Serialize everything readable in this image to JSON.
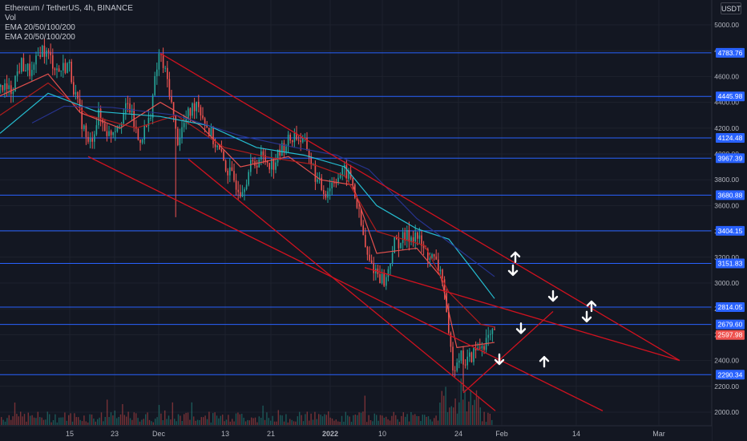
{
  "legend": {
    "symbol": "Ethereum / TetherUS, 4h, BINANCE",
    "vol": "Vol",
    "ema1": "EMA 20/50/100/200",
    "ema2": "EMA 20/50/100/200"
  },
  "currency": "USDT",
  "colors": {
    "background": "#131722",
    "grid": "#1e222d",
    "bull": "#26a69a",
    "bear": "#ef5350",
    "hline": "#2962ff",
    "channel": "#d1121f",
    "ema20": "#ef5350",
    "ema50": "#b71c1c",
    "ema100": "#26c6da",
    "ema200": "#283593",
    "price_tag": "#2962ff",
    "last_tag": "#ef5350",
    "arrow": "#ffffff"
  },
  "chart_data": {
    "type": "candlestick",
    "symbol": "ETHUSDT",
    "timeframe": "4h",
    "exchange": "BINANCE",
    "x_tick_labels": [
      "15",
      "23",
      "Dec",
      "13",
      "21",
      "2022",
      "10",
      "24",
      "Feb",
      "14",
      "Mar"
    ],
    "y_tick_labels": [
      2000,
      2200,
      2400,
      2600,
      2800,
      3000,
      3200,
      3400,
      3600,
      3800,
      4000,
      4200,
      4400,
      4600,
      4800,
      5000
    ],
    "ylim": [
      1910,
      5070
    ],
    "horizontal_levels": [
      4783.76,
      4445.98,
      4124.48,
      3967.39,
      3680.88,
      3404.15,
      3151.83,
      2814.05,
      2679.6,
      2290.34
    ],
    "last_price": 2597.98,
    "price_path": [
      [
        0,
        4520
      ],
      [
        12,
        4480
      ],
      [
        25,
        4700
      ],
      [
        40,
        4620
      ],
      [
        50,
        4820
      ],
      [
        60,
        4760
      ],
      [
        72,
        4640
      ],
      [
        85,
        4700
      ],
      [
        95,
        4400
      ],
      [
        110,
        4050
      ],
      [
        122,
        4300
      ],
      [
        135,
        4150
      ],
      [
        148,
        4260
      ],
      [
        160,
        4380
      ],
      [
        172,
        4100
      ],
      [
        185,
        4250
      ],
      [
        198,
        4780
      ],
      [
        210,
        4520
      ],
      [
        220,
        4100
      ],
      [
        230,
        4250
      ],
      [
        245,
        4420
      ],
      [
        258,
        4200
      ],
      [
        270,
        4050
      ],
      [
        285,
        3850
      ],
      [
        300,
        3720
      ],
      [
        312,
        3900
      ],
      [
        325,
        3980
      ],
      [
        340,
        3920
      ],
      [
        355,
        4080
      ],
      [
        368,
        4150
      ],
      [
        382,
        4050
      ],
      [
        395,
        3780
      ],
      [
        405,
        3700
      ],
      [
        418,
        3820
      ],
      [
        430,
        3860
      ],
      [
        438,
        3800
      ],
      [
        448,
        3500
      ],
      [
        458,
        3180
      ],
      [
        468,
        3100
      ],
      [
        480,
        3000
      ],
      [
        490,
        3300
      ],
      [
        505,
        3350
      ],
      [
        518,
        3380
      ],
      [
        528,
        3250
      ],
      [
        540,
        3180
      ],
      [
        552,
        3050
      ],
      [
        558,
        2600
      ],
      [
        565,
        2350
      ],
      [
        572,
        2450
      ],
      [
        580,
        2380
      ],
      [
        592,
        2470
      ],
      [
        605,
        2550
      ],
      [
        615,
        2597.98
      ]
    ],
    "ema_lines": [
      {
        "name": "EMA 20",
        "values": [
          [
            0,
            4450
          ],
          [
            60,
            4620
          ],
          [
            100,
            4320
          ],
          [
            150,
            4200
          ],
          [
            200,
            4400
          ],
          [
            250,
            4220
          ],
          [
            300,
            3900
          ],
          [
            360,
            3980
          ],
          [
            400,
            3800
          ],
          [
            440,
            3760
          ],
          [
            470,
            3230
          ],
          [
            520,
            3270
          ],
          [
            550,
            3050
          ],
          [
            570,
            2500
          ],
          [
            617,
            2540
          ]
        ]
      },
      {
        "name": "EMA 50",
        "values": [
          [
            0,
            4300
          ],
          [
            60,
            4550
          ],
          [
            110,
            4300
          ],
          [
            170,
            4200
          ],
          [
            220,
            4300
          ],
          [
            280,
            4050
          ],
          [
            330,
            3980
          ],
          [
            390,
            3920
          ],
          [
            430,
            3830
          ],
          [
            470,
            3400
          ],
          [
            530,
            3290
          ],
          [
            560,
            2930
          ],
          [
            600,
            2680
          ],
          [
            617,
            2660
          ]
        ]
      },
      {
        "name": "EMA 100",
        "values": [
          [
            0,
            4160
          ],
          [
            60,
            4470
          ],
          [
            120,
            4330
          ],
          [
            200,
            4290
          ],
          [
            260,
            4220
          ],
          [
            320,
            4050
          ],
          [
            380,
            3990
          ],
          [
            430,
            3900
          ],
          [
            470,
            3600
          ],
          [
            520,
            3420
          ],
          [
            560,
            3340
          ],
          [
            590,
            3100
          ],
          [
            617,
            2880
          ]
        ]
      },
      {
        "name": "EMA 200",
        "values": [
          [
            40,
            4240
          ],
          [
            80,
            4370
          ],
          [
            140,
            4360
          ],
          [
            220,
            4300
          ],
          [
            300,
            4140
          ],
          [
            360,
            4060
          ],
          [
            420,
            3990
          ],
          [
            460,
            3880
          ],
          [
            520,
            3500
          ],
          [
            570,
            3270
          ],
          [
            617,
            3050
          ]
        ]
      }
    ],
    "channel_lines": [
      [
        [
          200,
          4780
        ],
        [
          848,
          2400
        ]
      ],
      [
        [
          110,
          3980
        ],
        [
          752,
          2010
        ]
      ],
      [
        [
          235,
          3960
        ],
        [
          618,
          2010
        ]
      ],
      [
        [
          455,
          3120
        ],
        [
          848,
          2400
        ]
      ],
      [
        [
          578,
          2150
        ],
        [
          690,
          2780
        ]
      ]
    ],
    "arrows": [
      {
        "dir": "up",
        "at": [
          643,
          3200
        ]
      },
      {
        "dir": "down",
        "at": [
          640,
          3100
        ]
      },
      {
        "dir": "down",
        "at": [
          690,
          2900
        ]
      },
      {
        "dir": "up",
        "at": [
          738,
          2820
        ]
      },
      {
        "dir": "down",
        "at": [
          732,
          2740
        ]
      },
      {
        "dir": "down",
        "at": [
          650,
          2650
        ]
      },
      {
        "dir": "down",
        "at": [
          623,
          2410
        ]
      },
      {
        "dir": "up",
        "at": [
          679,
          2390
        ]
      }
    ],
    "volume_present": true
  }
}
